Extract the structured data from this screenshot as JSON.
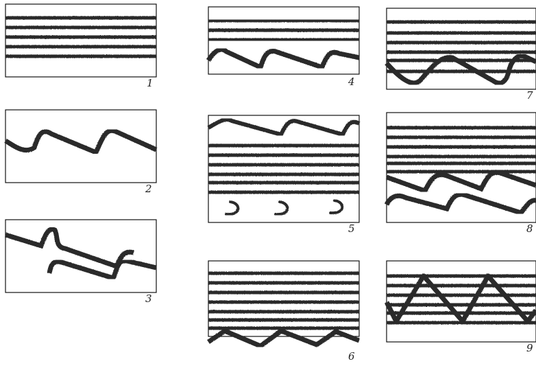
{
  "panels": [
    {
      "label": "1",
      "motif": [
        "stripes:5"
      ]
    },
    {
      "label": "2",
      "motif": [
        "sawtooth-wave"
      ]
    },
    {
      "label": "3",
      "motif": [
        "sawtooth-wave",
        "sawtooth-wave"
      ]
    },
    {
      "label": "4",
      "motif": [
        "stripes:3",
        "sawtooth-wave"
      ]
    },
    {
      "label": "5",
      "motif": [
        "sawtooth-wave",
        "stripes:6",
        "crescents:3"
      ]
    },
    {
      "label": "6",
      "motif": [
        "stripes:7",
        "zigzag-wave"
      ]
    },
    {
      "label": "7",
      "motif": [
        "stripes:6",
        "sine-wave"
      ]
    },
    {
      "label": "8",
      "motif": [
        "stripes:6",
        "sawtooth-wave",
        "sawtooth-wave"
      ]
    },
    {
      "label": "9",
      "motif": [
        "stripes:6",
        "triangle-wave"
      ]
    }
  ],
  "colors": {
    "ink": "#2a2a2a",
    "frame": "#111111",
    "background": "#ffffff"
  }
}
